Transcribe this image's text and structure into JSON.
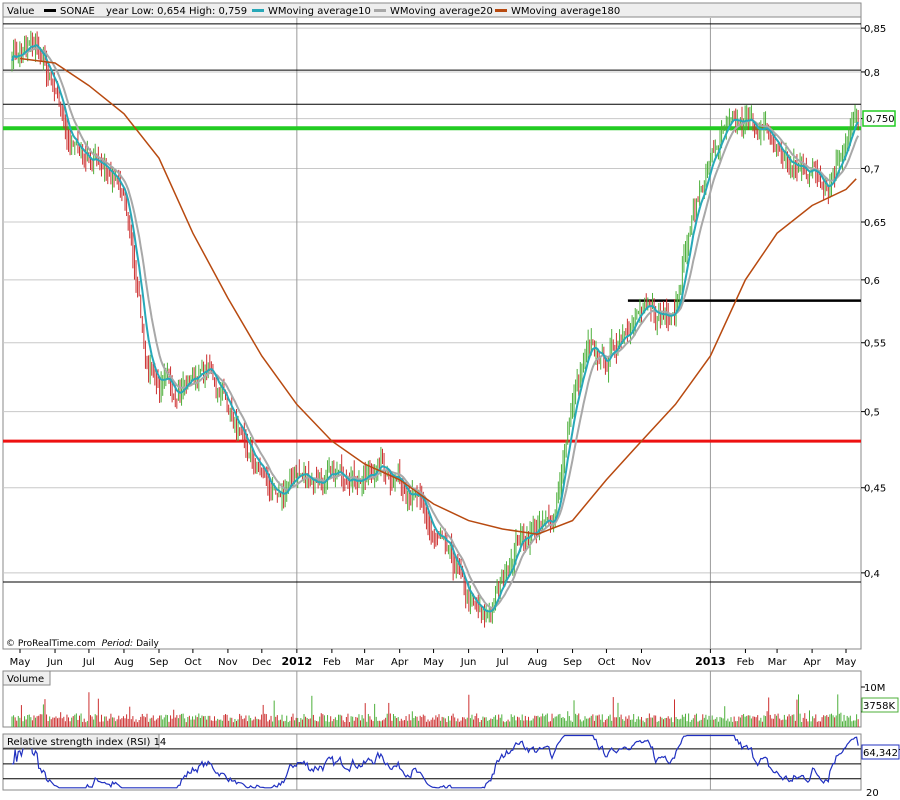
{
  "legend": {
    "value_label": "Value",
    "symbol": "SONAE",
    "range_text": "year Low: 0,654 High: 0,759",
    "items": [
      {
        "label": "WMoving average10",
        "color": "#28a8b8"
      },
      {
        "label": "WMoving average20",
        "color": "#a8a8a8"
      },
      {
        "label": "WMoving average180",
        "color": "#b84a10"
      }
    ]
  },
  "footer": {
    "source": "© ProRealTime.com",
    "period_label": "Period:",
    "period_value": "Daily"
  },
  "volume_panel": {
    "title": "Volume",
    "ticks": [
      {
        "label": "10M",
        "value": 10000000
      },
      {
        "label": "3758K",
        "value": 3758000
      }
    ],
    "last_value_label": "3758K"
  },
  "rsi_panel": {
    "title": "Relative strength index (RSI) 14",
    "tick_label_20": "20",
    "last_value_label": "64,3427",
    "bands": [
      30,
      50,
      70
    ]
  },
  "colors": {
    "up_bar": "#4caf3a",
    "down_bar": "#cc3030",
    "ma10": "#28a8b8",
    "ma20": "#a8a8a8",
    "ma180": "#b84a10",
    "green_level": "#22cc22",
    "red_level": "#ee1111",
    "rsi_line": "#2030c0",
    "grid": "#c8c8c8"
  },
  "chart_data": {
    "type": "line",
    "title": "SONAE",
    "y_ticks": [
      "0,85",
      "0,8",
      "0,75",
      "0,7",
      "0,65",
      "0,6",
      "0,55",
      "0,5",
      "0,45",
      "0,4"
    ],
    "ylim": [
      0.36,
      0.862
    ],
    "y_scale": "log",
    "last_price_label": "0,750",
    "last_price": 0.75,
    "x_ticks": [
      "May",
      "Jun",
      "Jul",
      "Aug",
      "Sep",
      "Oct",
      "Nov",
      "Dec",
      "2012",
      "Feb",
      "Mar",
      "Apr",
      "May",
      "Jun",
      "Jul",
      "Aug",
      "Sep",
      "Oct",
      "Nov",
      "2013",
      "Feb",
      "Mar",
      "Apr",
      "May"
    ],
    "x_tick_dates": [
      "2011-05-01",
      "2011-06-01",
      "2011-07-01",
      "2011-08-01",
      "2011-09-01",
      "2011-10-01",
      "2011-11-01",
      "2011-12-01",
      "2012-01-01",
      "2012-02-01",
      "2012-03-01",
      "2012-04-01",
      "2012-05-01",
      "2012-06-01",
      "2012-07-01",
      "2012-08-01",
      "2012-09-01",
      "2012-10-01",
      "2012-11-01",
      "2013-01-01",
      "2013-02-01",
      "2013-03-01",
      "2013-04-01",
      "2013-05-01"
    ],
    "bold_x_ticks": [
      "2012",
      "2013"
    ],
    "series": [
      {
        "name": "SONAE",
        "dates": [
          "2011-05-01",
          "2011-05-15",
          "2011-06-01",
          "2011-06-15",
          "2011-07-01",
          "2011-07-15",
          "2011-08-01",
          "2011-08-12",
          "2011-08-20",
          "2011-09-01",
          "2011-09-15",
          "2011-10-01",
          "2011-10-15",
          "2011-11-01",
          "2011-11-15",
          "2011-12-01",
          "2011-12-15",
          "2012-01-01",
          "2012-01-15",
          "2012-02-01",
          "2012-02-15",
          "2012-03-01",
          "2012-03-15",
          "2012-04-01",
          "2012-04-15",
          "2012-05-01",
          "2012-05-15",
          "2012-06-01",
          "2012-06-15",
          "2012-07-01",
          "2012-07-15",
          "2012-08-01",
          "2012-08-15",
          "2012-09-01",
          "2012-09-15",
          "2012-10-01",
          "2012-10-15",
          "2012-11-01",
          "2012-11-15",
          "2012-12-01",
          "2012-12-15",
          "2013-01-01",
          "2013-01-15",
          "2013-02-01",
          "2013-02-15",
          "2013-03-01",
          "2013-03-15",
          "2013-04-01",
          "2013-04-15",
          "2013-05-01",
          "2013-05-10"
        ],
        "values": [
          0.82,
          0.83,
          0.775,
          0.725,
          0.71,
          0.705,
          0.67,
          0.6,
          0.54,
          0.52,
          0.515,
          0.525,
          0.53,
          0.505,
          0.475,
          0.46,
          0.44,
          0.46,
          0.455,
          0.455,
          0.46,
          0.455,
          0.465,
          0.455,
          0.445,
          0.42,
          0.41,
          0.385,
          0.375,
          0.395,
          0.42,
          0.425,
          0.43,
          0.505,
          0.545,
          0.535,
          0.56,
          0.575,
          0.57,
          0.58,
          0.65,
          0.71,
          0.74,
          0.745,
          0.74,
          0.72,
          0.7,
          0.7,
          0.685,
          0.73,
          0.75
        ]
      },
      {
        "name": "WMoving average180",
        "dates": [
          "2011-05-01",
          "2011-06-01",
          "2011-07-01",
          "2011-08-01",
          "2011-09-01",
          "2011-10-01",
          "2011-11-01",
          "2011-12-01",
          "2012-01-01",
          "2012-02-01",
          "2012-03-01",
          "2012-04-01",
          "2012-05-01",
          "2012-06-01",
          "2012-07-01",
          "2012-08-01",
          "2012-09-01",
          "2012-10-01",
          "2012-11-01",
          "2012-12-01",
          "2013-01-01",
          "2013-02-01",
          "2013-03-01",
          "2013-04-01",
          "2013-05-01",
          "2013-05-10"
        ],
        "values": [
          0.815,
          0.81,
          0.785,
          0.755,
          0.71,
          0.64,
          0.585,
          0.54,
          0.505,
          0.48,
          0.465,
          0.455,
          0.44,
          0.43,
          0.425,
          0.422,
          0.43,
          0.455,
          0.48,
          0.505,
          0.54,
          0.6,
          0.64,
          0.665,
          0.68,
          0.69
        ]
      }
    ],
    "horizontal_levels": [
      {
        "value": 0.74,
        "color": "green"
      },
      {
        "value": 0.583,
        "color": "black",
        "start": "2012-10-20"
      },
      {
        "value": 0.48,
        "color": "red"
      },
      {
        "value": 0.395,
        "color": "black"
      },
      {
        "value": 0.765,
        "color": "black"
      },
      {
        "value": 0.802,
        "color": "black"
      },
      {
        "value": 0.855,
        "color": "black"
      }
    ]
  }
}
